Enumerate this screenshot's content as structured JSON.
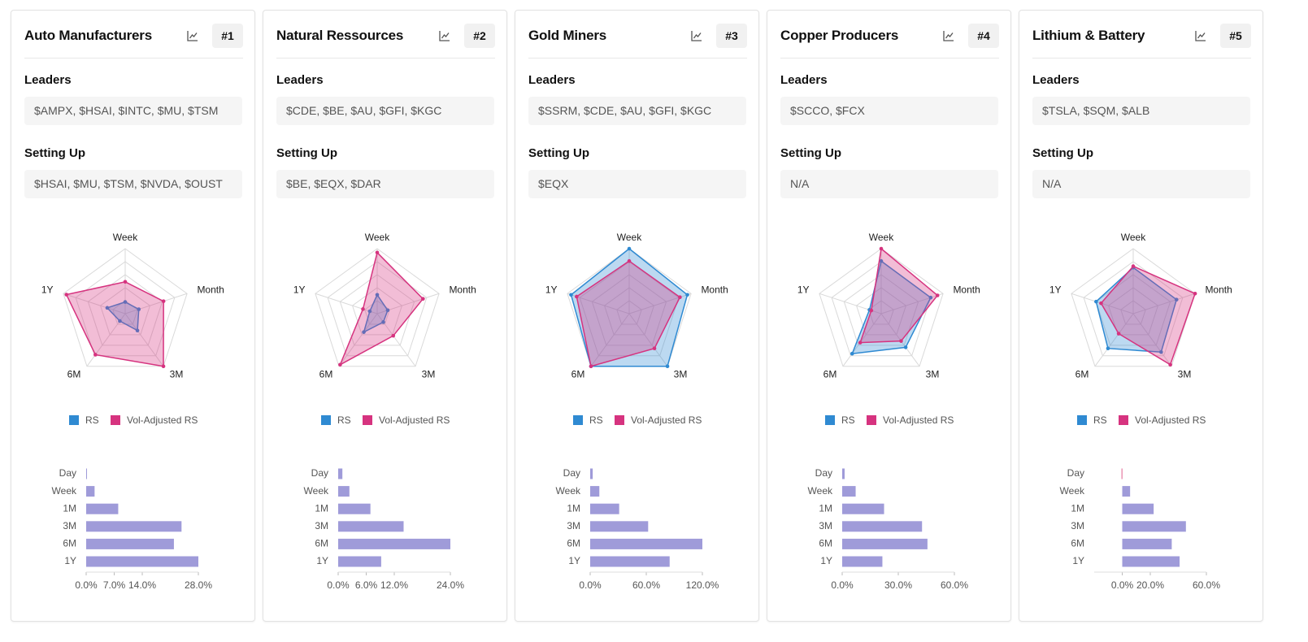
{
  "cards": [
    {
      "title": "Auto Manufacturers",
      "rank": "#1",
      "sections": [
        {
          "label": "Leaders",
          "text": "$AMPX, $HSAI, $INTC, $MU, $TSM"
        },
        {
          "label": "Setting Up",
          "text": "$HSAI, $MU, $TSM, $NVDA, $OUST"
        }
      ],
      "radar": {
        "type": "radar",
        "axes": [
          "Week",
          "Month",
          "3M",
          "6M",
          "1Y"
        ],
        "rlim": [
          0,
          100
        ],
        "rticks": [
          20,
          40,
          60,
          80,
          100
        ],
        "series": [
          {
            "name": "RS",
            "color": "#2f8ad2",
            "values": [
              18,
              22,
              32,
              14,
              29
            ]
          },
          {
            "name": "Vol-Adjusted RS",
            "color": "#d6337f",
            "values": [
              49,
              62,
              100,
              78,
              95
            ]
          }
        ]
      },
      "bars": {
        "type": "bar",
        "orientation": "horizontal",
        "categories": [
          "Day",
          "Week",
          "1M",
          "3M",
          "6M",
          "1Y"
        ],
        "values": [
          0,
          2.1,
          8.0,
          23.8,
          21.9,
          28.0
        ],
        "color": "#9f9bd9",
        "negative_color": "#e0608f",
        "xlim": [
          0,
          28
        ],
        "xticks": [
          {
            "value": 0,
            "label": "0.0%"
          },
          {
            "value": 7,
            "label": "7.0%"
          },
          {
            "value": 14,
            "label": "14.0%"
          },
          {
            "value": 28,
            "label": "28.0%"
          }
        ]
      }
    },
    {
      "title": "Natural Ressources",
      "rank": "#2",
      "sections": [
        {
          "label": "Leaders",
          "text": "$CDE, $BE, $AU, $GFI, $KGC"
        },
        {
          "label": "Setting Up",
          "text": "$BE, $EQX, $DAR"
        }
      ],
      "radar": {
        "type": "radar",
        "axes": [
          "Week",
          "Month",
          "3M",
          "6M",
          "1Y"
        ],
        "rlim": [
          0,
          100
        ],
        "rticks": [
          20,
          40,
          60,
          80,
          100
        ],
        "series": [
          {
            "name": "RS",
            "color": "#2f8ad2",
            "values": [
              29,
              17,
              16,
              35,
              12
            ]
          },
          {
            "name": "Vol-Adjusted RS",
            "color": "#d6337f",
            "values": [
              94,
              74,
              42,
              97,
              23
            ]
          }
        ]
      },
      "bars": {
        "type": "bar",
        "orientation": "horizontal",
        "categories": [
          "Day",
          "Week",
          "1M",
          "3M",
          "6M",
          "1Y"
        ],
        "values": [
          0.9,
          2.4,
          6.9,
          14.0,
          24.0,
          9.2
        ],
        "color": "#9f9bd9",
        "negative_color": "#e0608f",
        "xlim": [
          0,
          24
        ],
        "xticks": [
          {
            "value": 0,
            "label": "0.0%"
          },
          {
            "value": 6,
            "label": "6.0%"
          },
          {
            "value": 12,
            "label": "12.0%"
          },
          {
            "value": 24,
            "label": "24.0%"
          }
        ]
      }
    },
    {
      "title": "Gold Miners",
      "rank": "#3",
      "sections": [
        {
          "label": "Leaders",
          "text": "$SSRM, $CDE, $AU, $GFI, $KGC"
        },
        {
          "label": "Setting Up",
          "text": "$EQX"
        }
      ],
      "radar": {
        "type": "radar",
        "axes": [
          "Week",
          "Month",
          "3M",
          "6M",
          "1Y"
        ],
        "rlim": [
          0,
          100
        ],
        "rticks": [
          20,
          40,
          60,
          80,
          100
        ],
        "series": [
          {
            "name": "RS",
            "color": "#2f8ad2",
            "values": [
              100,
              94,
              100,
              100,
              94
            ]
          },
          {
            "name": "Vol-Adjusted RS",
            "color": "#d6337f",
            "values": [
              81,
              82,
              66,
              100,
              85
            ]
          }
        ]
      },
      "bars": {
        "type": "bar",
        "orientation": "horizontal",
        "categories": [
          "Day",
          "Week",
          "1M",
          "3M",
          "6M",
          "1Y"
        ],
        "values": [
          2.7,
          9.8,
          31,
          62,
          120,
          85
        ],
        "color": "#9f9bd9",
        "negative_color": "#e0608f",
        "xlim": [
          0,
          120
        ],
        "xticks": [
          {
            "value": 0,
            "label": "0.0%"
          },
          {
            "value": 60,
            "label": "60.0%"
          },
          {
            "value": 120,
            "label": "120.0%"
          }
        ]
      }
    },
    {
      "title": "Copper Producers",
      "rank": "#4",
      "sections": [
        {
          "label": "Leaders",
          "text": "$SCCO, $FCX"
        },
        {
          "label": "Setting Up",
          "text": "N/A"
        }
      ],
      "radar": {
        "type": "radar",
        "axes": [
          "Week",
          "Month",
          "3M",
          "6M",
          "1Y"
        ],
        "rlim": [
          0,
          100
        ],
        "rticks": [
          20,
          40,
          60,
          80,
          100
        ],
        "series": [
          {
            "name": "RS",
            "color": "#2f8ad2",
            "values": [
              81,
              80,
              64,
              76,
              19
            ]
          },
          {
            "name": "Vol-Adjusted RS",
            "color": "#d6337f",
            "values": [
              100,
              91,
              52,
              55,
              16
            ]
          }
        ]
      },
      "bars": {
        "type": "bar",
        "orientation": "horizontal",
        "categories": [
          "Day",
          "Week",
          "1M",
          "3M",
          "6M",
          "1Y"
        ],
        "values": [
          1.3,
          7.2,
          22.4,
          42.7,
          45.6,
          21.5
        ],
        "color": "#9f9bd9",
        "negative_color": "#e0608f",
        "xlim": [
          0,
          60
        ],
        "xticks": [
          {
            "value": 0,
            "label": "0.0%"
          },
          {
            "value": 30,
            "label": "30.0%"
          },
          {
            "value": 60,
            "label": "60.0%"
          }
        ]
      }
    },
    {
      "title": "Lithium & Battery",
      "rank": "#5",
      "sections": [
        {
          "label": "Leaders",
          "text": "$TSLA, $SQM, $ALB"
        },
        {
          "label": "Setting Up",
          "text": "N/A"
        }
      ],
      "radar": {
        "type": "radar",
        "axes": [
          "Week",
          "Month",
          "3M",
          "6M",
          "1Y"
        ],
        "rlim": [
          0,
          100
        ],
        "rticks": [
          20,
          40,
          60,
          80,
          100
        ],
        "series": [
          {
            "name": "RS",
            "color": "#2f8ad2",
            "values": [
              71,
              70,
              73,
              66,
              60
            ]
          },
          {
            "name": "Vol-Adjusted RS",
            "color": "#d6337f",
            "values": [
              73,
              100,
              97,
              38,
              52
            ]
          }
        ]
      },
      "bars": {
        "type": "bar",
        "orientation": "horizontal",
        "categories": [
          "Day",
          "Week",
          "1M",
          "3M",
          "6M",
          "1Y"
        ],
        "values": [
          -0.5,
          5.6,
          22.4,
          45.4,
          35.3,
          40.9
        ],
        "color": "#9f9bd9",
        "negative_color": "#e0608f",
        "xlim": [
          -20,
          60
        ],
        "xticks": [
          {
            "value": 0,
            "label": "0.0%"
          },
          {
            "value": 20,
            "label": "20.0%"
          },
          {
            "value": 60,
            "label": "60.0%"
          }
        ]
      }
    }
  ]
}
